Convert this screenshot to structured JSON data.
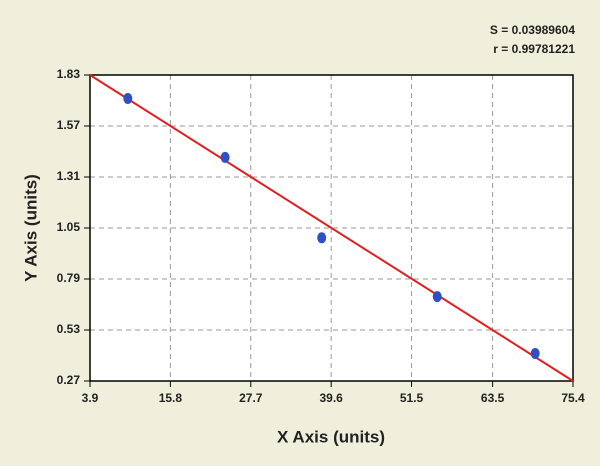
{
  "chart_data": {
    "type": "scatter",
    "x_label": "X Axis (units)",
    "y_label": "Y Axis (units)",
    "annotations": [
      "S = 0.03989604",
      "r = 0.99781221"
    ],
    "x": [
      9.5,
      23.9,
      38.2,
      55.3,
      69.8
    ],
    "values": [
      1.71,
      1.41,
      1.0,
      0.7,
      0.41
    ],
    "color": "#2f4fc4",
    "fit": {
      "x": [
        3.9,
        75.4
      ],
      "values": [
        1.83,
        0.27
      ],
      "color": "#e02020"
    },
    "xlim": [
      3.9,
      75.4
    ],
    "xticks": [
      3.9,
      15.8,
      27.7,
      39.6,
      51.5,
      63.5,
      75.4
    ],
    "ylim": [
      0.27,
      1.83
    ],
    "yticks": [
      0.27,
      0.53,
      0.79,
      1.05,
      1.31,
      1.57,
      1.83
    ],
    "grid": true
  }
}
